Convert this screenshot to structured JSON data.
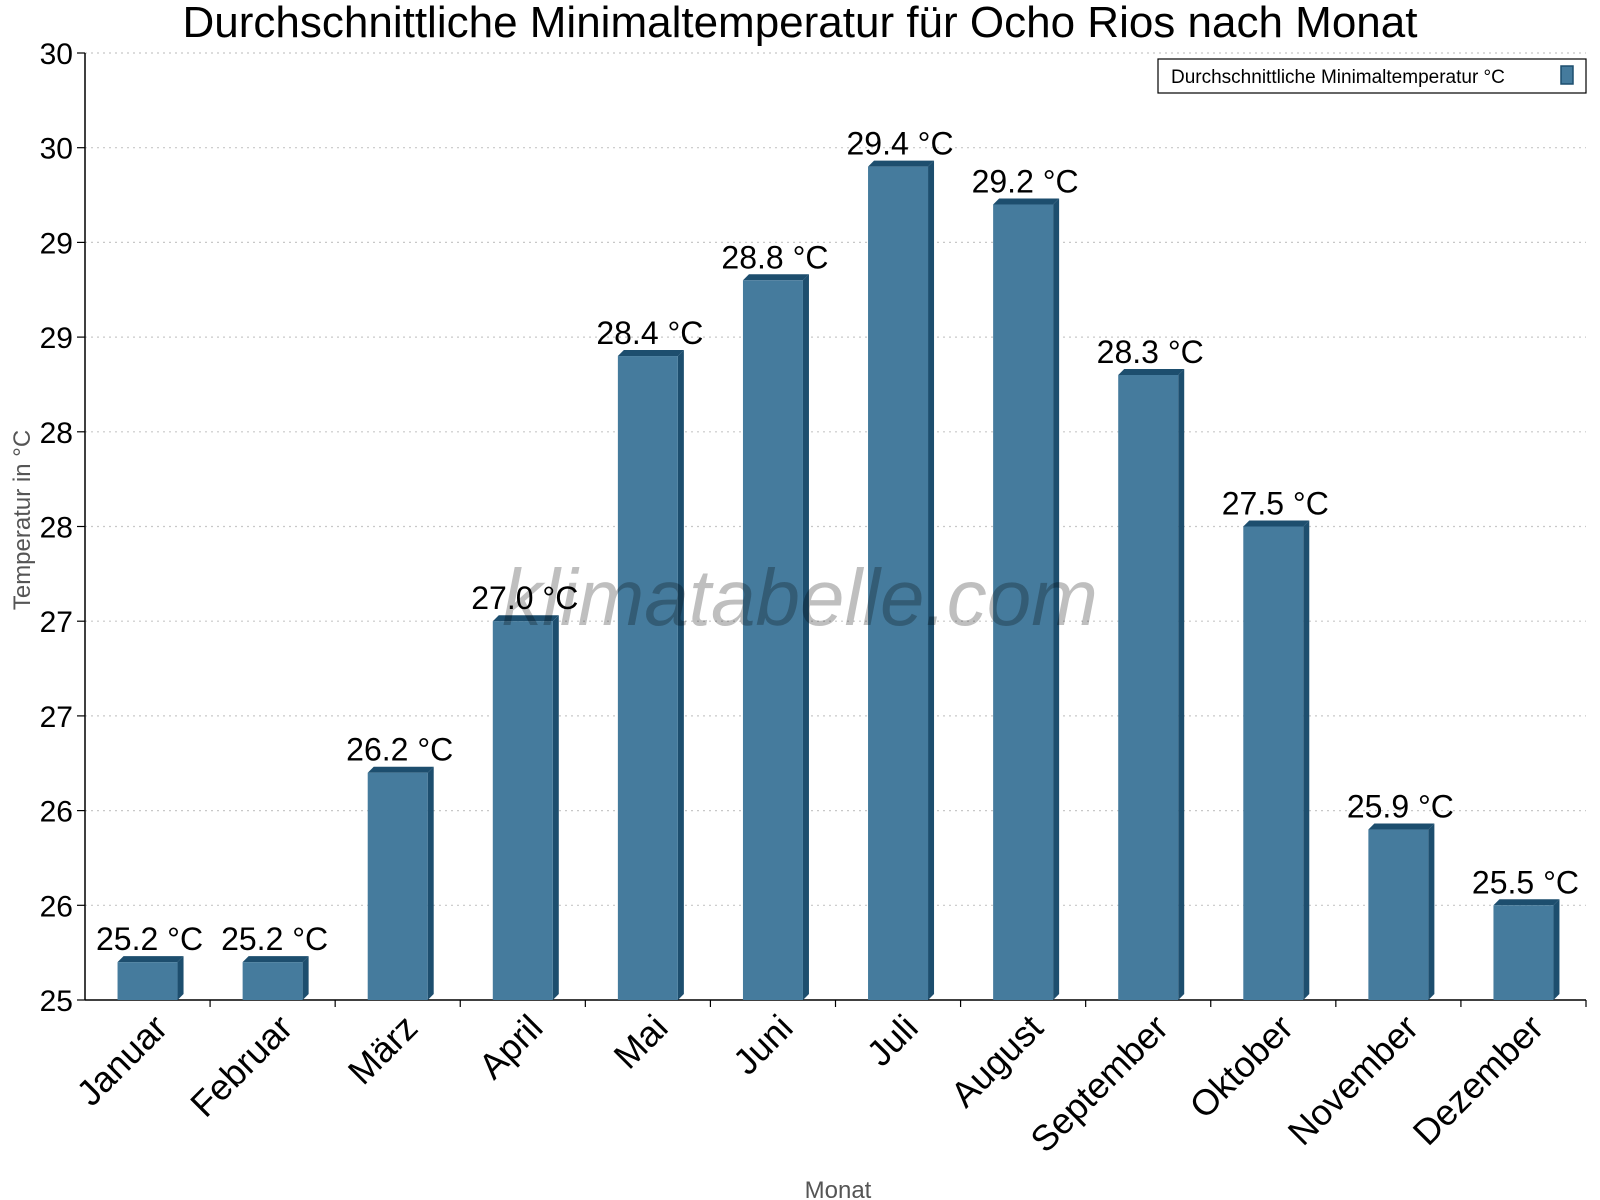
{
  "chart_data": {
    "type": "bar",
    "title": "Durchschnittliche Minimaltemperatur für Ocho Rios nach Monat",
    "xlabel": "Monat",
    "ylabel": "Temperatur in °C",
    "categories": [
      "Januar",
      "Februar",
      "März",
      "April",
      "Mai",
      "Juni",
      "Juli",
      "August",
      "September",
      "Oktober",
      "November",
      "Dezember"
    ],
    "series": [
      {
        "name": "Durchschnittliche Minimaltemperatur °C",
        "values": [
          25.2,
          25.2,
          26.2,
          27.0,
          28.4,
          28.8,
          29.4,
          29.2,
          28.3,
          27.5,
          25.9,
          25.5
        ],
        "labels": [
          "25.2 °C",
          "25.2 °C",
          "26.2 °C",
          "27.0 °C",
          "28.4 °C",
          "28.8 °C",
          "29.4 °C",
          "29.2 °C",
          "28.3 °C",
          "27.5 °C",
          "25.9 °C",
          "25.5 °C"
        ]
      }
    ],
    "ylim": [
      25.0,
      30.0
    ],
    "yticks": [
      25.0,
      25.5,
      26.0,
      26.5,
      27.0,
      27.5,
      28.0,
      28.5,
      29.0,
      29.5,
      30.0
    ],
    "ytick_labels": [
      "25",
      "26",
      "26",
      "27",
      "27",
      "28",
      "28",
      "29",
      "29",
      "30",
      "30"
    ],
    "grid": true,
    "legend_position": "top-right",
    "colors": {
      "bar_face": "#457b9d",
      "bar_edge": "#1d4e6e",
      "grid": "#c8c8c8"
    },
    "watermark": "klimatabelle.com"
  }
}
